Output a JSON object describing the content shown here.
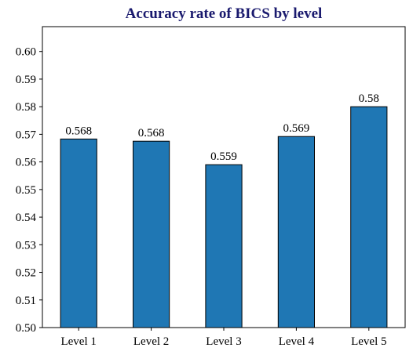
{
  "chart_data": {
    "type": "bar",
    "title": "Accuracy rate of BICS by level",
    "categories": [
      "Level 1",
      "Level 2",
      "Level 3",
      "Level 4",
      "Level 5"
    ],
    "values": [
      0.5683,
      0.5675,
      0.559,
      0.5692,
      0.58
    ],
    "data_labels": [
      "0.568",
      "0.568",
      "0.559",
      "0.569",
      "0.58"
    ],
    "xlabel": "",
    "ylabel": "",
    "ylim": [
      0.5,
      0.609
    ],
    "yticks": [
      0.5,
      0.51,
      0.52,
      0.53,
      0.54,
      0.55,
      0.56,
      0.57,
      0.58,
      0.59,
      0.6
    ],
    "grid": false,
    "legend": "none",
    "colors": {
      "bar": "#1f77b4",
      "bar_edge": "#000000",
      "title": "#1a1a6e",
      "axis": "#000000"
    }
  }
}
